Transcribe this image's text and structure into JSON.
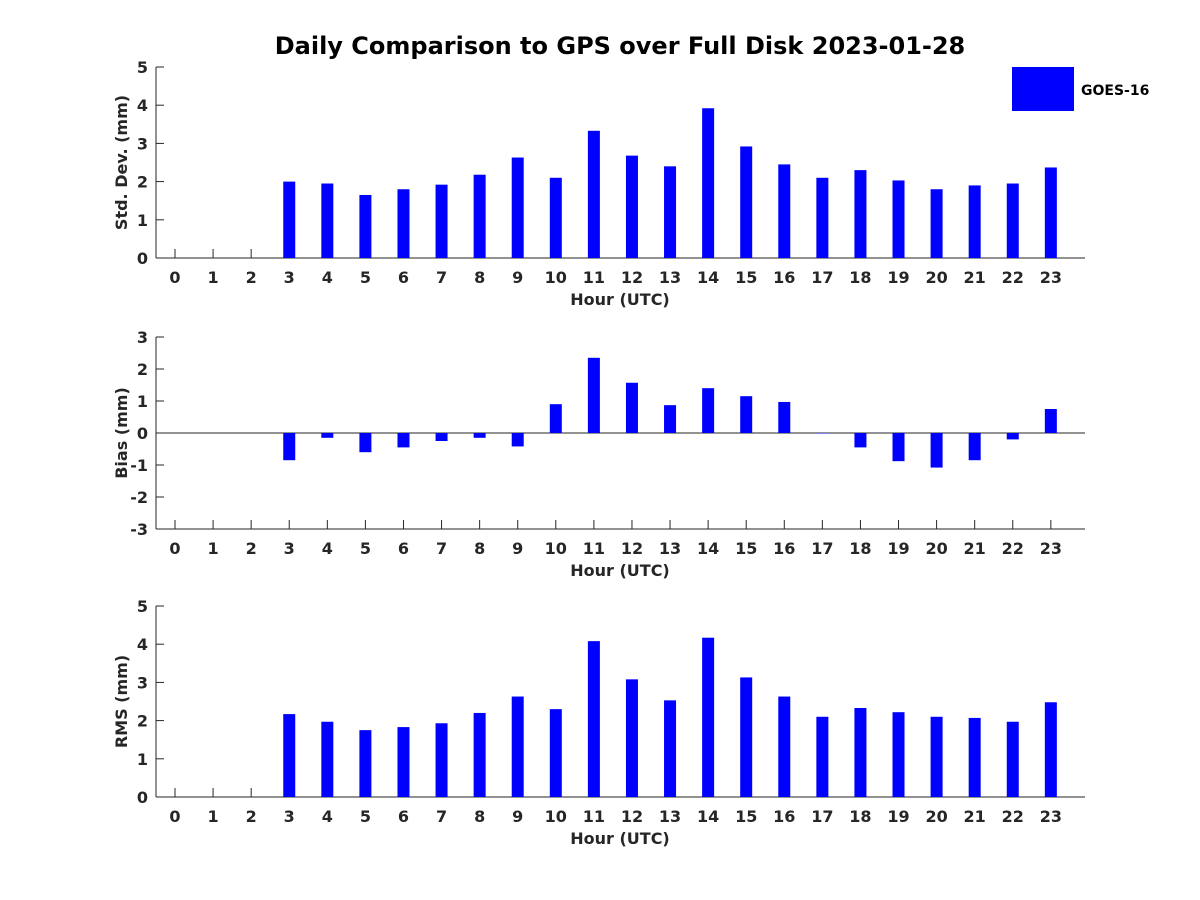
{
  "title": "Daily Comparison to GPS over Full Disk 2023-01-28",
  "legend": {
    "label": "GOES-16",
    "color": "#0000ff",
    "placement": "top-right"
  },
  "chart_data": [
    {
      "type": "bar",
      "xlabel": "Hour (UTC)",
      "ylabel": "Std. Dev. (mm)",
      "ylim": [
        0,
        5
      ],
      "yticks": [
        0,
        1,
        2,
        3,
        4,
        5
      ],
      "x": [
        0,
        1,
        2,
        3,
        4,
        5,
        6,
        7,
        8,
        9,
        10,
        11,
        12,
        13,
        14,
        15,
        16,
        17,
        18,
        19,
        20,
        21,
        22,
        23
      ],
      "series": [
        {
          "name": "GOES-16",
          "values": [
            null,
            null,
            null,
            2.0,
            1.95,
            1.65,
            1.8,
            1.92,
            2.18,
            2.63,
            2.1,
            3.33,
            2.68,
            2.4,
            3.92,
            2.92,
            2.45,
            2.1,
            2.3,
            2.03,
            1.8,
            1.9,
            1.95,
            2.37
          ]
        }
      ],
      "grid": false
    },
    {
      "type": "bar",
      "xlabel": "Hour (UTC)",
      "ylabel": "Bias (mm)",
      "ylim": [
        -3,
        3
      ],
      "yticks": [
        -3,
        -2,
        -1,
        0,
        1,
        2,
        3
      ],
      "x": [
        0,
        1,
        2,
        3,
        4,
        5,
        6,
        7,
        8,
        9,
        10,
        11,
        12,
        13,
        14,
        15,
        16,
        17,
        18,
        19,
        20,
        21,
        22,
        23
      ],
      "series": [
        {
          "name": "GOES-16",
          "values": [
            null,
            null,
            null,
            -0.85,
            -0.15,
            -0.6,
            -0.45,
            -0.25,
            -0.15,
            -0.42,
            0.9,
            2.35,
            1.57,
            0.87,
            1.4,
            1.15,
            0.97,
            0.0,
            -0.45,
            -0.88,
            -1.08,
            -0.85,
            -0.2,
            0.75
          ]
        }
      ],
      "grid": false
    },
    {
      "type": "bar",
      "xlabel": "Hour (UTC)",
      "ylabel": "RMS (mm)",
      "ylim": [
        0,
        5
      ],
      "yticks": [
        0,
        1,
        2,
        3,
        4,
        5
      ],
      "x": [
        0,
        1,
        2,
        3,
        4,
        5,
        6,
        7,
        8,
        9,
        10,
        11,
        12,
        13,
        14,
        15,
        16,
        17,
        18,
        19,
        20,
        21,
        22,
        23
      ],
      "series": [
        {
          "name": "GOES-16",
          "values": [
            null,
            null,
            null,
            2.17,
            1.97,
            1.75,
            1.83,
            1.93,
            2.2,
            2.63,
            2.3,
            4.08,
            3.08,
            2.53,
            4.17,
            3.13,
            2.63,
            2.1,
            2.33,
            2.22,
            2.1,
            2.07,
            1.97,
            2.48
          ]
        }
      ],
      "grid": false
    }
  ]
}
